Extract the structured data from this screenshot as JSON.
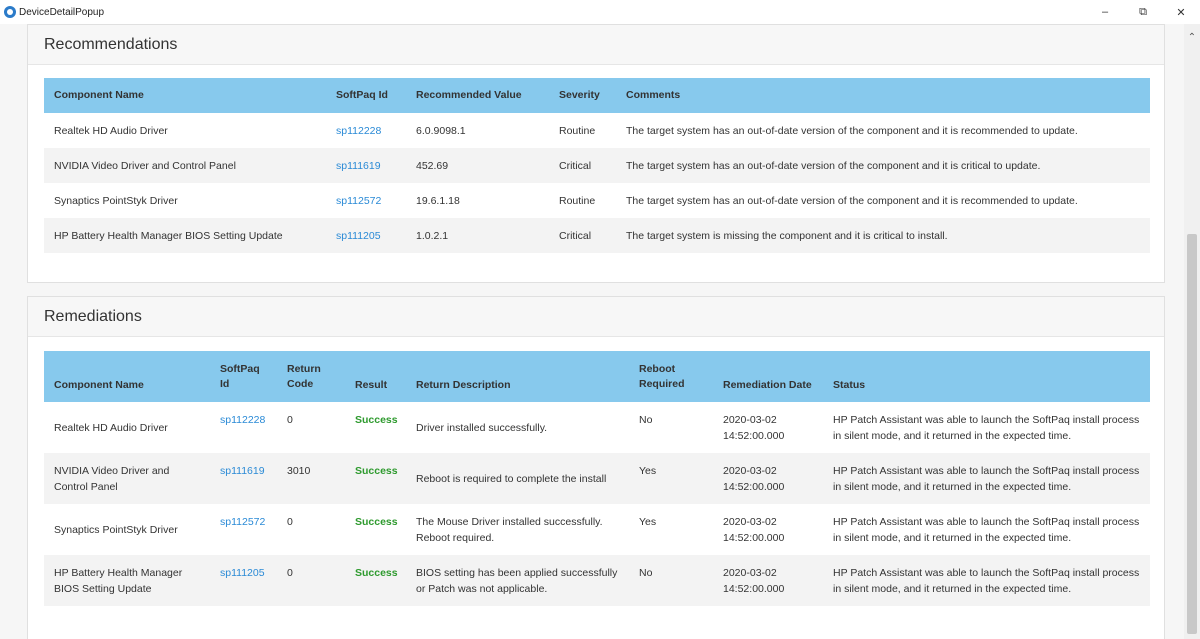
{
  "window": {
    "title": "DeviceDetailPopup",
    "controls": {
      "minimize": "–",
      "restore": "⧉",
      "close": "✕"
    }
  },
  "scrollbar": {
    "up_arrow": "⌃"
  },
  "recommendations": {
    "title": "Recommendations",
    "columns": [
      "Component Name",
      "SoftPaq Id",
      "Recommended Value",
      "Severity",
      "Comments"
    ],
    "rows": [
      {
        "component": "Realtek HD Audio Driver",
        "softpaq": "sp112228",
        "value": "6.0.9098.1",
        "severity": "Routine",
        "comments": "The target system has an out-of-date version of the component and it is recommended to update."
      },
      {
        "component": "NVIDIA Video Driver and Control Panel",
        "softpaq": "sp111619",
        "value": "452.69",
        "severity": "Critical",
        "comments": "The target system has an out-of-date version of the component and it is critical to update."
      },
      {
        "component": "Synaptics PointStyk Driver",
        "softpaq": "sp112572",
        "value": "19.6.1.18",
        "severity": "Routine",
        "comments": "The target system has an out-of-date version of the component and it is recommended to update."
      },
      {
        "component": "HP Battery Health Manager BIOS Setting Update",
        "softpaq": "sp111205",
        "value": "1.0.2.1",
        "severity": "Critical",
        "comments": "The target system is missing the component and it is critical to install."
      }
    ]
  },
  "remediations": {
    "title": "Remediations",
    "columns": {
      "component": "Component Name",
      "softpaq_1": "SoftPaq",
      "softpaq_2": "Id",
      "return_code_1": "Return",
      "return_code_2": "Code",
      "result": "Result",
      "description": "Return Description",
      "reboot_1": "Reboot",
      "reboot_2": "Required",
      "date": "Remediation Date",
      "status": "Status"
    },
    "rows": [
      {
        "component_1": "Realtek HD Audio Driver",
        "component_2": "",
        "softpaq": "sp112228",
        "code": "0",
        "result": "Success",
        "desc_1": "Driver installed successfully.",
        "desc_2": "",
        "reboot": "No",
        "date_1": "2020-03-02",
        "date_2": "14:52:00.000",
        "status_1": "HP Patch Assistant was able to launch the SoftPaq install process",
        "status_2": "in silent mode, and it returned in the expected time."
      },
      {
        "component_1": "NVIDIA Video Driver and",
        "component_2": "Control Panel",
        "softpaq": "sp111619",
        "code": "3010",
        "result": "Success",
        "desc_1": "Reboot is required to complete the install",
        "desc_2": "",
        "reboot": "Yes",
        "date_1": "2020-03-02",
        "date_2": "14:52:00.000",
        "status_1": "HP Patch Assistant was able to launch the SoftPaq install process",
        "status_2": "in silent mode, and it returned in the expected time."
      },
      {
        "component_1": "Synaptics PointStyk Driver",
        "component_2": "",
        "softpaq": "sp112572",
        "code": "0",
        "result": "Success",
        "desc_1": "The Mouse Driver installed successfully.",
        "desc_2": "Reboot required.",
        "reboot": "Yes",
        "date_1": "2020-03-02",
        "date_2": "14:52:00.000",
        "status_1": "HP Patch Assistant was able to launch the SoftPaq install process",
        "status_2": "in silent mode, and it returned in the expected time."
      },
      {
        "component_1": "HP Battery Health Manager",
        "component_2": "BIOS Setting Update",
        "softpaq": "sp111205",
        "code": "0",
        "result": "Success",
        "desc_1": "BIOS setting has been applied successfully",
        "desc_2": "or Patch was not applicable.",
        "reboot": "No",
        "date_1": "2020-03-02",
        "date_2": "14:52:00.000",
        "status_1": "HP Patch Assistant was able to launch the SoftPaq install process",
        "status_2": "in silent mode, and it returned in the expected time."
      }
    ]
  }
}
